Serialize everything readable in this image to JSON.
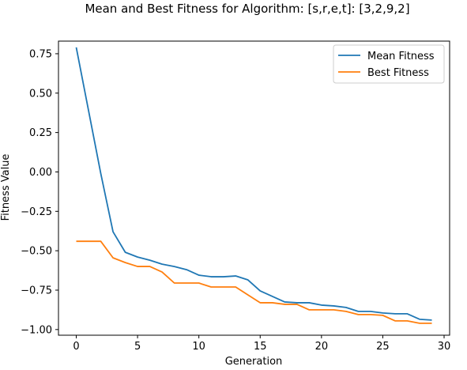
{
  "chart_data": {
    "type": "line",
    "title": "Mean and Best Fitness for Algorithm: [s,r,e,t]: [3,2,9,2]",
    "xlabel": "Generation",
    "ylabel": "Fitness Value",
    "xlim": [
      -1.45,
      30.45
    ],
    "ylim": [
      -1.036,
      0.83
    ],
    "grid": false,
    "legend_position": "top-right",
    "xticks": [
      0,
      5,
      10,
      15,
      20,
      25,
      30
    ],
    "xtick_labels": [
      "0",
      "5",
      "10",
      "15",
      "20",
      "25",
      "30"
    ],
    "yticks": [
      0.75,
      0.5,
      0.25,
      0.0,
      -0.25,
      -0.5,
      -0.75,
      -1.0
    ],
    "ytick_labels": [
      "0.75",
      "0.50",
      "0.25",
      "0.00",
      "−0.25",
      "−0.50",
      "−0.75",
      "−1.00"
    ],
    "x": [
      0,
      1,
      2,
      3,
      4,
      5,
      6,
      7,
      8,
      9,
      10,
      11,
      12,
      13,
      14,
      15,
      16,
      17,
      18,
      19,
      20,
      21,
      22,
      23,
      24,
      25,
      26,
      27,
      28,
      29
    ],
    "series": [
      {
        "name": "Mean Fitness",
        "color": "#1f77b4",
        "values": [
          0.79,
          0.39,
          -0.01,
          -0.38,
          -0.51,
          -0.54,
          -0.56,
          -0.585,
          -0.6,
          -0.62,
          -0.655,
          -0.665,
          -0.665,
          -0.66,
          -0.685,
          -0.755,
          -0.79,
          -0.825,
          -0.83,
          -0.83,
          -0.845,
          -0.85,
          -0.86,
          -0.885,
          -0.885,
          -0.895,
          -0.9,
          -0.9,
          -0.935,
          -0.94
        ]
      },
      {
        "name": "Best Fitness",
        "color": "#ff7f0e",
        "values": [
          -0.44,
          -0.44,
          -0.44,
          -0.545,
          -0.575,
          -0.6,
          -0.6,
          -0.635,
          -0.705,
          -0.705,
          -0.705,
          -0.73,
          -0.73,
          -0.73,
          -0.78,
          -0.83,
          -0.83,
          -0.84,
          -0.84,
          -0.875,
          -0.875,
          -0.875,
          -0.885,
          -0.905,
          -0.905,
          -0.91,
          -0.945,
          -0.945,
          -0.96,
          -0.96
        ]
      }
    ]
  }
}
